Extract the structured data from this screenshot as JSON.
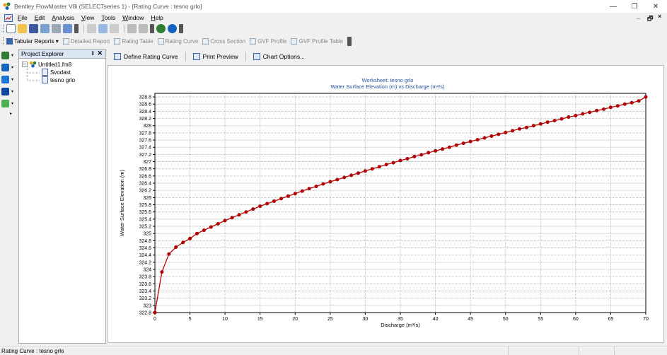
{
  "window": {
    "title": "Bentley FlowMaster V8i (SELECTseries 1) - [Rating Curve : tesno grlo]",
    "minimize": "—",
    "restore": "❐",
    "close": "✕"
  },
  "menu": {
    "items": [
      "File",
      "Edit",
      "Analysis",
      "View",
      "Tools",
      "Window",
      "Help"
    ],
    "mdi_min": "_",
    "mdi_restore": "🗗",
    "mdi_close": "×"
  },
  "toolbar2": {
    "tabular_reports": "Tabular Reports ▾",
    "detailed_report": "Detailed Report",
    "rating_table": "Rating Table",
    "rating_curve": "Rating Curve",
    "cross_section": "Cross Section",
    "gvf_profile": "GVF Profile",
    "gvf_profile_table": "GVF Profile Table"
  },
  "explorer": {
    "title": "Project Explorer",
    "pin": "ⅱ",
    "close": "✕",
    "root": "Untitled1.fm8",
    "children": [
      "Svodast",
      "tesno grlo"
    ]
  },
  "doc_toolbar": {
    "define_rating_curve": "Define Rating Curve",
    "print_preview": "Print Preview",
    "chart_options": "Chart Options..."
  },
  "chart_data": {
    "type": "line",
    "title": "Worksheet: tesno grlo",
    "subtitle": "Water Surface Elevation (m) vs Discharge (m³/s)",
    "xlabel": "Discharge (m³/s)",
    "ylabel": "Water Surface Elevation (m)",
    "xlim": [
      0,
      70
    ],
    "ylim": [
      322.8,
      328.9
    ],
    "xticks": [
      0,
      5,
      10,
      15,
      20,
      25,
      30,
      35,
      40,
      45,
      50,
      55,
      60,
      65,
      70
    ],
    "yticks": [
      322.8,
      323,
      323.2,
      323.4,
      323.6,
      323.8,
      324,
      324.2,
      324.4,
      324.6,
      324.8,
      325,
      325.2,
      325.4,
      325.6,
      325.8,
      326,
      326.2,
      326.4,
      326.6,
      326.8,
      327,
      327.2,
      327.4,
      327.6,
      327.8,
      328,
      328.2,
      328.4,
      328.6,
      328.8
    ],
    "ytick_labels": [
      "322.8",
      "323",
      "323.2",
      "323.4",
      "323.6",
      "323.8",
      "324",
      "324.2",
      "324.4",
      "324.6",
      "324.8",
      "325",
      "325.2",
      "325.4",
      "325.6",
      "325.8",
      "326",
      "326.2",
      "326.4",
      "326.6",
      "326.8",
      "327",
      "327.2",
      "327.4",
      "327.6",
      "327.8",
      "328",
      "328.2",
      "328.4",
      "328.6",
      "328.8"
    ],
    "grid": true,
    "line_color": "#c00000",
    "marker_color": "#8b0000",
    "x": [
      0,
      1,
      2,
      3,
      4,
      5,
      6,
      7,
      8,
      9,
      10,
      11,
      12,
      13,
      14,
      15,
      16,
      17,
      18,
      19,
      20,
      21,
      22,
      23,
      24,
      25,
      26,
      27,
      28,
      29,
      30,
      31,
      32,
      33,
      34,
      35,
      36,
      37,
      38,
      39,
      40,
      41,
      42,
      43,
      44,
      45,
      46,
      47,
      48,
      49,
      50,
      51,
      52,
      53,
      54,
      55,
      56,
      57,
      58,
      59,
      60,
      61,
      62,
      63,
      64,
      65,
      66,
      67,
      68,
      69,
      70
    ],
    "y": [
      322.8,
      323.93,
      324.43,
      324.62,
      324.75,
      324.86,
      325.0,
      325.09,
      325.18,
      325.27,
      325.36,
      325.44,
      325.52,
      325.6,
      325.68,
      325.76,
      325.83,
      325.9,
      325.97,
      326.04,
      326.11,
      326.18,
      326.25,
      326.31,
      326.38,
      326.44,
      326.5,
      326.56,
      326.62,
      326.68,
      326.74,
      326.8,
      326.86,
      326.92,
      326.97,
      327.03,
      327.08,
      327.14,
      327.19,
      327.25,
      327.3,
      327.35,
      327.4,
      327.46,
      327.51,
      327.56,
      327.61,
      327.66,
      327.71,
      327.76,
      327.81,
      327.86,
      327.91,
      327.95,
      328.0,
      328.05,
      328.1,
      328.14,
      328.19,
      328.24,
      328.28,
      328.33,
      328.37,
      328.42,
      328.46,
      328.51,
      328.55,
      328.6,
      328.64,
      328.69,
      328.8
    ]
  },
  "status": {
    "text": "Rating Curve : tesno grlo"
  }
}
